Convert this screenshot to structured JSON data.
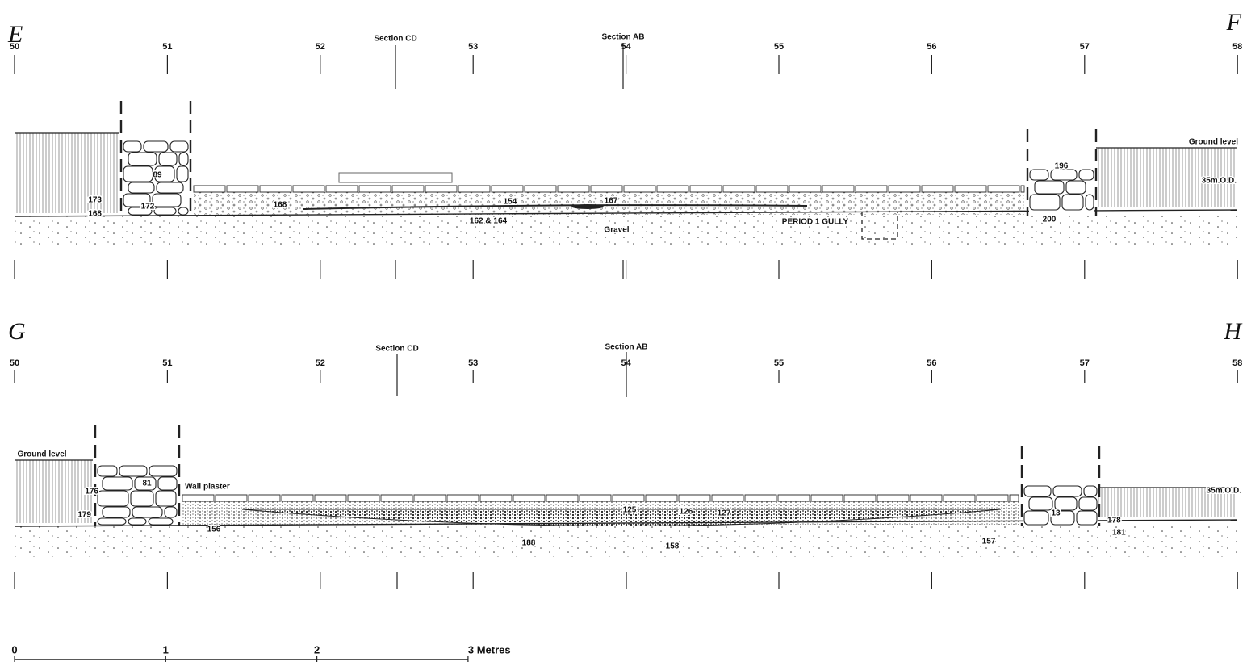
{
  "sections": [
    {
      "start": "E",
      "end": "F",
      "grid": [
        50,
        51,
        52,
        53,
        54,
        55,
        56,
        57,
        58
      ],
      "markers": [
        "Section CD",
        "Section AB"
      ],
      "contexts": [
        "89",
        "173",
        "172",
        "168",
        "168",
        "154",
        "167",
        "162 & 164",
        "Gravel",
        "PERIOD 1 GULLY",
        "196",
        "200",
        "Ground level",
        "35m.O.D."
      ]
    },
    {
      "start": "G",
      "end": "H",
      "grid": [
        50,
        51,
        52,
        53,
        54,
        55,
        56,
        57,
        58
      ],
      "markers": [
        "Section CD",
        "Section AB"
      ],
      "contexts": [
        "Ground level",
        "176",
        "81",
        "Wall plaster",
        "179",
        "156",
        "125",
        "126",
        "127",
        "188",
        "158",
        "157",
        "13",
        "178",
        "181",
        "35m.O.D."
      ]
    }
  ],
  "scale": {
    "ticks": [
      0,
      1,
      2,
      {
        "value": 3,
        "label": "3 Metres"
      }
    ]
  }
}
